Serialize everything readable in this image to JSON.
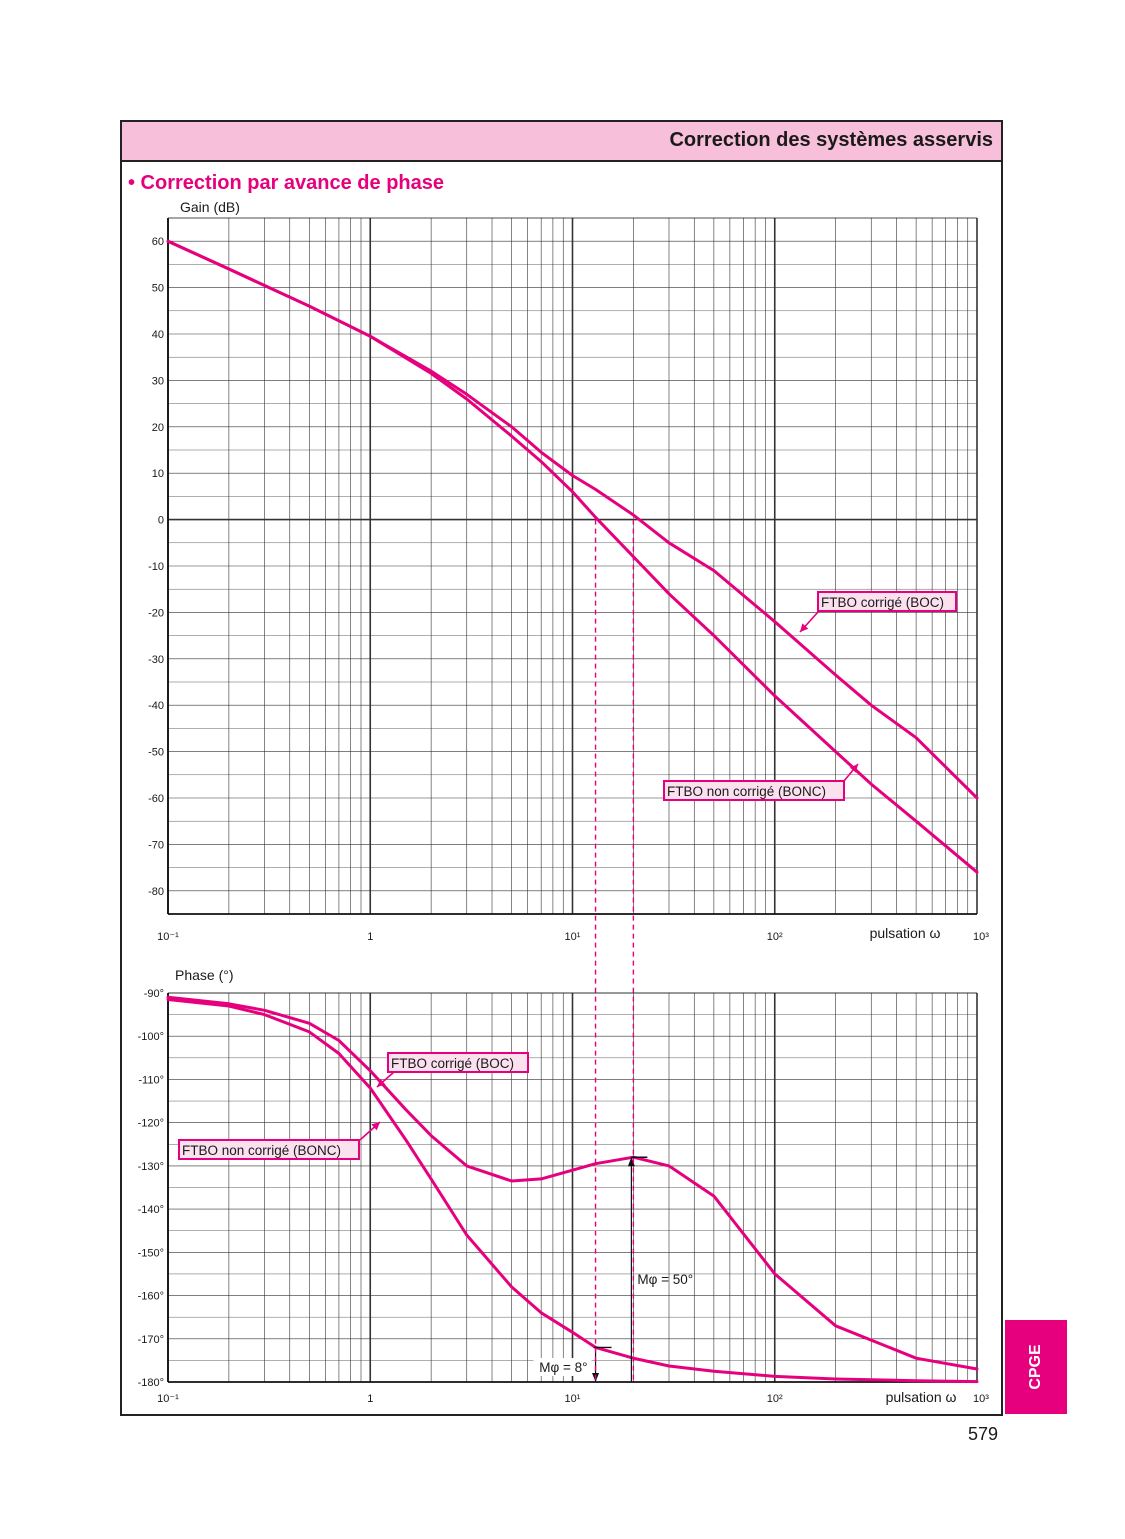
{
  "header": {
    "title": "Correction des systèmes asservis"
  },
  "section": {
    "title": "• Correction par avance de phase"
  },
  "page_number": "579",
  "side_tab": "CPGE",
  "colors": {
    "curve": "#e6007e",
    "header_bg": "#f7bfd9",
    "label_bg": "#fbe0ee",
    "grid": "#333333"
  },
  "chart_data": [
    {
      "type": "line",
      "xscale": "log",
      "xlim": [
        0.1,
        1000
      ],
      "ylim": [
        -85,
        65
      ],
      "ylabel": "Gain (dB)",
      "xlabel": "pulsation ω",
      "yticks": [
        60,
        50,
        40,
        30,
        20,
        10,
        0,
        -10,
        -20,
        -30,
        -40,
        -50,
        -60,
        -70,
        -80
      ],
      "ytick_labels": [
        "60",
        "50",
        "40",
        "30",
        "20",
        "10",
        "0",
        "-10",
        "-20",
        "-30",
        "-40",
        "-50",
        "-60",
        "-70",
        "-80"
      ],
      "xtick_labels": [
        "10⁻¹",
        "1",
        "10¹",
        "10²",
        "10³"
      ],
      "grid": true,
      "series": [
        {
          "name": "FTBO non corrigé (BONC)",
          "x": [
            0.1,
            0.2,
            0.5,
            1,
            2,
            3,
            5,
            7,
            10,
            13,
            20,
            30,
            50,
            100,
            200,
            300,
            500,
            1000
          ],
          "y": [
            60,
            54,
            46,
            39.5,
            31.5,
            26,
            18,
            12.5,
            6,
            0.5,
            -8,
            -16,
            -25,
            -38,
            -50,
            -57,
            -65,
            -76
          ]
        },
        {
          "name": "FTBO corrigé (BOC)",
          "x": [
            0.1,
            0.2,
            0.5,
            1,
            2,
            3,
            5,
            7,
            10,
            13,
            20,
            30,
            50,
            100,
            200,
            300,
            500,
            1000
          ],
          "y": [
            60,
            54,
            46,
            39.5,
            32,
            27,
            20,
            14.5,
            9.5,
            6.5,
            1,
            -5,
            -11,
            -22,
            -33.5,
            -40,
            -47,
            -60
          ]
        }
      ],
      "annotations": [
        {
          "text": "FTBO corrigé (BOC)",
          "series": "FTBO corrigé (BOC)"
        },
        {
          "text": "FTBO non corrigé (BONC)",
          "series": "FTBO non corrigé (BONC)"
        }
      ]
    },
    {
      "type": "line",
      "xscale": "log",
      "xlim": [
        0.1,
        1000
      ],
      "ylim": [
        -180,
        -90
      ],
      "ylabel": "Phase (°)",
      "xlabel": "pulsation ω",
      "yticks": [
        -90,
        -100,
        -110,
        -120,
        -130,
        -140,
        -150,
        -160,
        -170,
        -180
      ],
      "ytick_labels": [
        "-90°",
        "-100°",
        "-110°",
        "-120°",
        "-130°",
        "-140°",
        "-150°",
        "-160°",
        "-170°",
        "-180°"
      ],
      "xtick_labels": [
        "10⁻¹",
        "1",
        "10¹",
        "10²",
        "10³"
      ],
      "grid": true,
      "series": [
        {
          "name": "FTBO non corrigé (BONC)",
          "x": [
            0.1,
            0.2,
            0.3,
            0.5,
            0.7,
            1,
            1.5,
            2,
            3,
            5,
            7,
            10,
            13,
            20,
            30,
            50,
            100,
            200,
            500,
            1000
          ],
          "y": [
            -91.5,
            -93,
            -95,
            -99,
            -104,
            -112,
            -124,
            -133,
            -146,
            -158,
            -164,
            -168.5,
            -172,
            -174.5,
            -176.3,
            -177.5,
            -178.7,
            -179.3,
            -179.7,
            -179.9
          ]
        },
        {
          "name": "FTBO corrigé (BOC)",
          "x": [
            0.1,
            0.2,
            0.3,
            0.5,
            0.7,
            1,
            1.5,
            2,
            3,
            5,
            7,
            10,
            13,
            20,
            30,
            50,
            100,
            200,
            500,
            1000
          ],
          "y": [
            -91,
            -92.5,
            -94,
            -97,
            -101,
            -108,
            -117,
            -123,
            -130,
            -133.5,
            -133,
            -131,
            -129.5,
            -128,
            -130,
            -137,
            -155,
            -167,
            -174.5,
            -177
          ]
        }
      ],
      "annotations": [
        {
          "text": "FTBO corrigé (BOC)",
          "series": "FTBO corrigé (BOC)"
        },
        {
          "text": "FTBO non corrigé (BONC)",
          "series": "FTBO non corrigé (BONC)"
        },
        {
          "text": "Mφ = 50°",
          "at_x": 20
        },
        {
          "text": "Mφ = 8°",
          "at_x": 13
        }
      ],
      "crossover_lines_x": [
        13,
        20
      ]
    }
  ]
}
